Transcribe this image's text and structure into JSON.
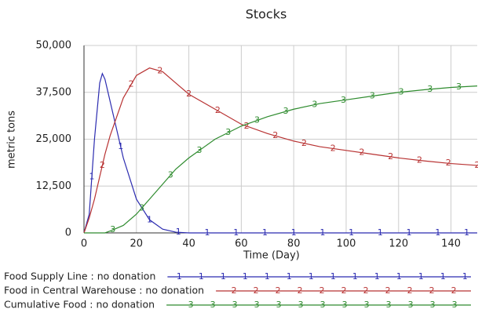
{
  "chart_data": {
    "type": "line",
    "title": "Stocks",
    "xlabel": "Time (Day)",
    "ylabel": "metric tons",
    "x": [
      0,
      2,
      4,
      6,
      7,
      8,
      10,
      15,
      20,
      25,
      30,
      35,
      40,
      50,
      60,
      70,
      80,
      90,
      100,
      110,
      120,
      130,
      140,
      150
    ],
    "series": [
      {
        "name": "Food Supply Line : no donation",
        "marker": "1",
        "color": "#2b2bb0",
        "values": [
          0,
          5000,
          25000,
          40000,
          42500,
          41000,
          35000,
          20000,
          9000,
          3500,
          1000,
          200,
          0,
          0,
          0,
          0,
          0,
          0,
          0,
          0,
          0,
          0,
          0,
          0
        ]
      },
      {
        "name": "Food in Central Warehouse : no donation",
        "marker": "2",
        "color": "#b83232",
        "values": [
          0,
          4000,
          9000,
          15000,
          18000,
          21000,
          26000,
          36000,
          42000,
          44000,
          43000,
          40000,
          37000,
          33000,
          29000,
          26500,
          24500,
          23000,
          22000,
          21000,
          20000,
          19200,
          18500,
          18000
        ]
      },
      {
        "name": "Cumulative Food : no donation",
        "marker": "3",
        "color": "#2e8b2e",
        "values": [
          0,
          0,
          0,
          0,
          0,
          0,
          500,
          2000,
          5000,
          9000,
          13000,
          17000,
          20000,
          25000,
          28500,
          31000,
          33000,
          34500,
          35500,
          36500,
          37500,
          38200,
          38800,
          39200
        ]
      }
    ],
    "xlim": [
      0,
      150
    ],
    "xticks": [
      0,
      20,
      40,
      60,
      80,
      100,
      120,
      140
    ],
    "ylim": [
      0,
      50000
    ],
    "yticks": [
      0,
      {
        "value": 12500,
        "label": "12,500"
      },
      {
        "value": 25000,
        "label": "25,000"
      },
      {
        "value": 37500,
        "label": "37,500"
      },
      {
        "value": 50000,
        "label": "50,000"
      }
    ],
    "grid": true
  }
}
